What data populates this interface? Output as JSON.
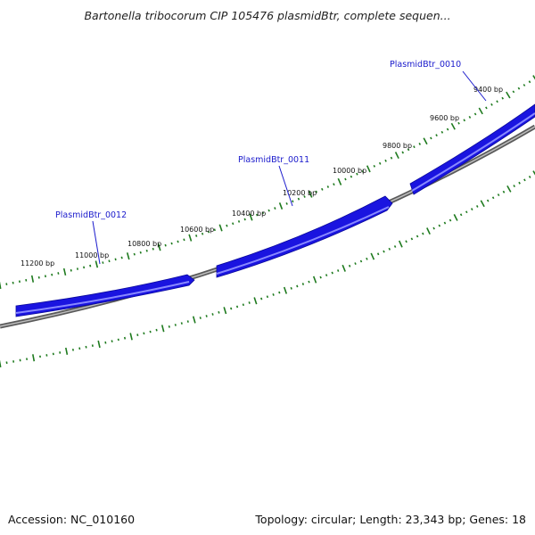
{
  "title": "Bartonella tribocorum CIP 105476 plasmidBtr, complete sequen...",
  "colors": {
    "gene": "#1a14e0",
    "gene_edge": "#0a0a9a",
    "tick": "#1e7a1e",
    "backbone": "#888888",
    "label": "#1a1acc"
  },
  "tick_labels": [
    "9400 bp",
    "9600 bp",
    "9800 bp",
    "10000 bp",
    "10200 bp",
    "10400 bp",
    "10600 bp",
    "10800 bp",
    "11000 bp",
    "11200 bp"
  ],
  "genes": [
    {
      "name": "PlasmidBtr_0010",
      "strand": "forward"
    },
    {
      "name": "PlasmidBtr_0011",
      "strand": "forward"
    },
    {
      "name": "PlasmidBtr_0012",
      "strand": "forward"
    }
  ],
  "footer": {
    "accession": "Accession: NC_010160",
    "summary": "Topology: circular; Length: 23,343 bp; Genes: 18"
  }
}
